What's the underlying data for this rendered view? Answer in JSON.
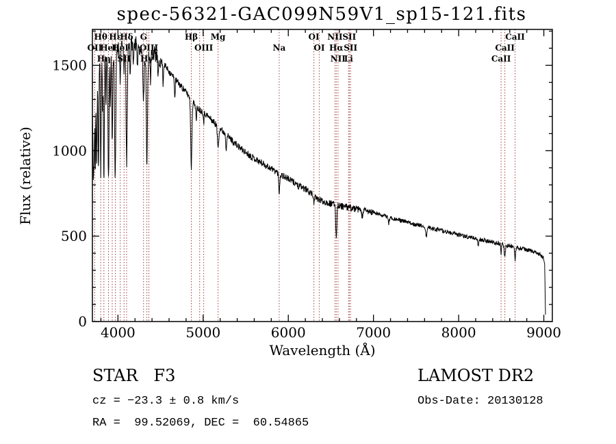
{
  "title": "spec-56321-GAC099N59V1_sp15-121.fits",
  "footer": {
    "classification": "STAR   F3",
    "survey": "LAMOST DR2",
    "cz": "cz = −23.3 ± 0.8 km/s",
    "obs_date": "Obs-Date: 20130128",
    "coordinates": "RA =  99.52069, DEC =  60.54865"
  },
  "chart_data": {
    "type": "line",
    "title": "spec-56321-GAC099N59V1_sp15-121.fits",
    "xlabel": "Wavelength (Å)",
    "ylabel": "Flux (relative)",
    "xlim": [
      3700,
      9100
    ],
    "ylim": [
      0,
      1710
    ],
    "xticks": [
      4000,
      5000,
      6000,
      7000,
      8000,
      9000
    ],
    "yticks": [
      0,
      500,
      1000,
      1500
    ],
    "x_minor_step": 200,
    "y_minor_step": 100,
    "grid": false,
    "line_color": "#000000",
    "marker_color": "#a03c3c",
    "label_color": "#000000",
    "spectral_lines": [
      {
        "wavelength": 3727,
        "label": "OII",
        "row": 2
      },
      {
        "wavelength": 3798,
        "label": "Hθ",
        "row": 1
      },
      {
        "wavelength": 3835,
        "label": "Hη",
        "row": 3
      },
      {
        "wavelength": 3889,
        "label": "HeI",
        "row": 2
      },
      {
        "wavelength": 3933,
        "label": "",
        "row": 0
      },
      {
        "wavelength": 3970,
        "label": "Hε",
        "row": 1
      },
      {
        "wavelength": 4026,
        "label": "HeI",
        "row": 2
      },
      {
        "wavelength": 4072,
        "label": "SII",
        "row": 3
      },
      {
        "wavelength": 4102,
        "label": "Hδ",
        "row": 1
      },
      {
        "wavelength": 4300,
        "label": "G",
        "row": 1
      },
      {
        "wavelength": 4340,
        "label": "Hγ",
        "row": 3
      },
      {
        "wavelength": 4363,
        "label": "OIII",
        "row": 2
      },
      {
        "wavelength": 4861,
        "label": "Hβ",
        "row": 1
      },
      {
        "wavelength": 4959,
        "label": "",
        "row": 0
      },
      {
        "wavelength": 5007,
        "label": "OIII",
        "row": 2
      },
      {
        "wavelength": 5175,
        "label": "Mg",
        "row": 1
      },
      {
        "wavelength": 5893,
        "label": "Na",
        "row": 2
      },
      {
        "wavelength": 6300,
        "label": "OI",
        "row": 1
      },
      {
        "wavelength": 6363,
        "label": "OI",
        "row": 2
      },
      {
        "wavelength": 6548,
        "label": "NII",
        "row": 1
      },
      {
        "wavelength": 6563,
        "label": "Hα",
        "row": 2
      },
      {
        "wavelength": 6583,
        "label": "NII",
        "row": 3
      },
      {
        "wavelength": 6708,
        "label": "Li",
        "row": 3
      },
      {
        "wavelength": 6716,
        "label": "SII",
        "row": 1
      },
      {
        "wavelength": 6731,
        "label": "SII",
        "row": 2
      },
      {
        "wavelength": 8498,
        "label": "CaII",
        "row": 3
      },
      {
        "wavelength": 8542,
        "label": "CaII",
        "row": 2
      },
      {
        "wavelength": 8662,
        "label": "CaII",
        "row": 1
      }
    ],
    "continuum": [
      [
        3700,
        1250
      ],
      [
        3720,
        1390
      ],
      [
        3750,
        1500
      ],
      [
        3790,
        1560
      ],
      [
        3830,
        1540
      ],
      [
        3870,
        1550
      ],
      [
        3910,
        1560
      ],
      [
        3950,
        1575
      ],
      [
        4000,
        1600
      ],
      [
        4060,
        1605
      ],
      [
        4120,
        1615
      ],
      [
        4180,
        1635
      ],
      [
        4240,
        1615
      ],
      [
        4300,
        1565
      ],
      [
        4360,
        1565
      ],
      [
        4420,
        1575
      ],
      [
        4480,
        1535
      ],
      [
        4540,
        1505
      ],
      [
        4600,
        1465
      ],
      [
        4660,
        1425
      ],
      [
        4720,
        1390
      ],
      [
        4780,
        1355
      ],
      [
        4840,
        1315
      ],
      [
        4900,
        1270
      ],
      [
        4960,
        1240
      ],
      [
        5020,
        1220
      ],
      [
        5100,
        1180
      ],
      [
        5200,
        1130
      ],
      [
        5300,
        1080
      ],
      [
        5400,
        1030
      ],
      [
        5500,
        990
      ],
      [
        5600,
        955
      ],
      [
        5700,
        925
      ],
      [
        5800,
        895
      ],
      [
        5900,
        865
      ],
      [
        6000,
        835
      ],
      [
        6100,
        805
      ],
      [
        6200,
        775
      ],
      [
        6260,
        755
      ],
      [
        6320,
        722
      ],
      [
        6400,
        705
      ],
      [
        6500,
        690
      ],
      [
        6600,
        678
      ],
      [
        6700,
        668
      ],
      [
        6800,
        658
      ],
      [
        6900,
        648
      ],
      [
        7000,
        638
      ],
      [
        7100,
        623
      ],
      [
        7200,
        608
      ],
      [
        7300,
        594
      ],
      [
        7400,
        581
      ],
      [
        7500,
        568
      ],
      [
        7600,
        556
      ],
      [
        7700,
        544
      ],
      [
        7800,
        532
      ],
      [
        7900,
        520
      ],
      [
        8000,
        508
      ],
      [
        8100,
        497
      ],
      [
        8200,
        486
      ],
      [
        8300,
        475
      ],
      [
        8400,
        464
      ],
      [
        8500,
        453
      ],
      [
        8600,
        442
      ],
      [
        8700,
        431
      ],
      [
        8800,
        420
      ],
      [
        8900,
        406
      ],
      [
        8960,
        392
      ],
      [
        9000,
        368
      ],
      [
        9010,
        330
      ],
      [
        9018,
        60
      ],
      [
        9022,
        10
      ]
    ],
    "absorption_features": [
      [
        3712,
        520,
        5
      ],
      [
        3722,
        350,
        4
      ],
      [
        3734,
        560,
        4
      ],
      [
        3750,
        600,
        5
      ],
      [
        3771,
        640,
        5
      ],
      [
        3798,
        700,
        5
      ],
      [
        3820,
        300,
        4
      ],
      [
        3835,
        740,
        5
      ],
      [
        3860,
        250,
        4
      ],
      [
        3889,
        720,
        6
      ],
      [
        3910,
        300,
        4
      ],
      [
        3933,
        520,
        5
      ],
      [
        3968,
        760,
        7
      ],
      [
        4026,
        220,
        4
      ],
      [
        4072,
        180,
        4
      ],
      [
        4102,
        700,
        7
      ],
      [
        4144,
        180,
        4
      ],
      [
        4180,
        150,
        4
      ],
      [
        4227,
        170,
        4
      ],
      [
        4300,
        260,
        7
      ],
      [
        4340,
        660,
        7
      ],
      [
        4383,
        200,
        4
      ],
      [
        4471,
        150,
        4
      ],
      [
        4530,
        120,
        4
      ],
      [
        4668,
        120,
        4
      ],
      [
        4861,
        400,
        7
      ],
      [
        4920,
        100,
        4
      ],
      [
        5007,
        60,
        4
      ],
      [
        5175,
        120,
        8
      ],
      [
        5270,
        80,
        5
      ],
      [
        5893,
        110,
        6
      ],
      [
        6122,
        40,
        4
      ],
      [
        6300,
        30,
        4
      ],
      [
        6563,
        195,
        6
      ],
      [
        6867,
        40,
        6
      ],
      [
        7180,
        35,
        6
      ],
      [
        7620,
        55,
        8
      ],
      [
        8230,
        40,
        6
      ],
      [
        8498,
        55,
        5
      ],
      [
        8542,
        75,
        6
      ],
      [
        8662,
        75,
        6
      ]
    ],
    "noise": {
      "seed": 11,
      "blue_limit": 4500,
      "red_limit": 7000,
      "amplitude_blue": 45,
      "amplitude_mid": 20,
      "amplitude_red": 12
    }
  }
}
